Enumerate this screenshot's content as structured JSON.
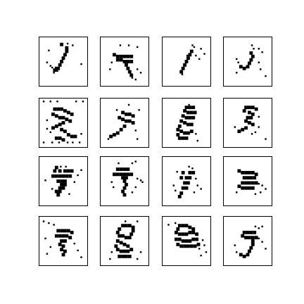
{
  "figure": {
    "grid": {
      "rows": 4,
      "cols": 4
    },
    "style": {
      "background": "#ffffff",
      "ink": "#000000",
      "frame": "#000000"
    },
    "cells": [
      {
        "row": 0,
        "col": 0,
        "digit_like": "1"
      },
      {
        "row": 0,
        "col": 1,
        "digit_like": "4"
      },
      {
        "row": 0,
        "col": 2,
        "digit_like": "1"
      },
      {
        "row": 0,
        "col": 3,
        "digit_like": "j"
      },
      {
        "row": 1,
        "col": 0,
        "digit_like": "4"
      },
      {
        "row": 1,
        "col": 1,
        "digit_like": "4"
      },
      {
        "row": 1,
        "col": 2,
        "digit_like": "8"
      },
      {
        "row": 1,
        "col": 3,
        "digit_like": "3"
      },
      {
        "row": 2,
        "col": 0,
        "digit_like": "4"
      },
      {
        "row": 2,
        "col": 1,
        "digit_like": "7"
      },
      {
        "row": 2,
        "col": 2,
        "digit_like": "4"
      },
      {
        "row": 2,
        "col": 3,
        "digit_like": "4"
      },
      {
        "row": 3,
        "col": 0,
        "digit_like": "7"
      },
      {
        "row": 3,
        "col": 1,
        "digit_like": "8"
      },
      {
        "row": 3,
        "col": 2,
        "digit_like": "8"
      },
      {
        "row": 3,
        "col": 3,
        "digit_like": "9"
      }
    ]
  }
}
